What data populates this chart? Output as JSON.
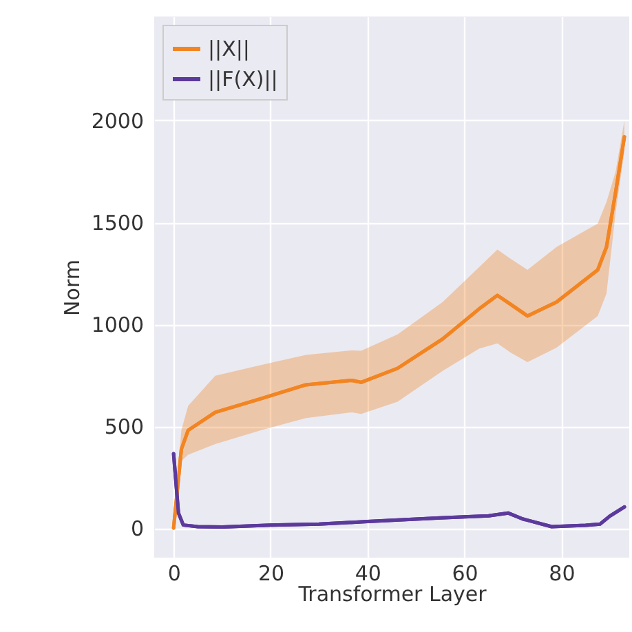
{
  "chart_data": {
    "type": "line",
    "xlabel": "Transformer Layer",
    "ylabel": "Norm",
    "xlim": [
      -4,
      94
    ],
    "ylim": [
      -145,
      2510
    ],
    "xticks": [
      0,
      20,
      40,
      60,
      80
    ],
    "yticks": [
      0,
      500,
      {
        "value": 1000,
        "label": "1000"
      },
      {
        "value": 1500,
        "label": "1500"
      },
      {
        "value": 2000,
        "label": "2000"
      }
    ],
    "grid": true,
    "legend": "top left",
    "line_style": "solid",
    "marker": "none",
    "series": [
      {
        "name": "||X||",
        "color": "#f28522",
        "x": [
          0,
          1.6,
          3,
          8.6,
          18,
          27.3,
          36.8,
          38.7,
          46.2,
          55.5,
          63,
          66.8,
          69.6,
          73,
          79,
          87.5,
          89.3,
          91.2,
          93
        ],
        "values": [
          0,
          387,
          480,
          568,
          635,
          703,
          725,
          715,
          784,
          928,
          1075,
          1142,
          1097,
          1041,
          1109,
          1267,
          1379,
          1650,
          1920
        ],
        "lower": [
          0,
          330,
          360,
          412,
          480,
          540,
          568,
          560,
          620,
          771,
          880,
          906,
          860,
          814,
          885,
          1041,
          1150,
          1550,
          1850
        ],
        "upper": [
          0,
          480,
          600,
          748,
          800,
          850,
          872,
          870,
          950,
          1109,
          1280,
          1367,
          1320,
          1267,
          1379,
          1494,
          1600,
          1750,
          2000
        ]
      },
      {
        "name": "||F(X)||",
        "color": "#5c3a9c",
        "x": [
          0,
          1,
          2,
          5,
          10,
          20,
          30,
          40,
          55,
          65,
          69,
          72,
          78,
          85,
          88,
          90,
          93
        ],
        "values": [
          365,
          74,
          15,
          7,
          5,
          15,
          20,
          32,
          50,
          60,
          74,
          45,
          7,
          14,
          20,
          59,
          104
        ]
      }
    ]
  }
}
